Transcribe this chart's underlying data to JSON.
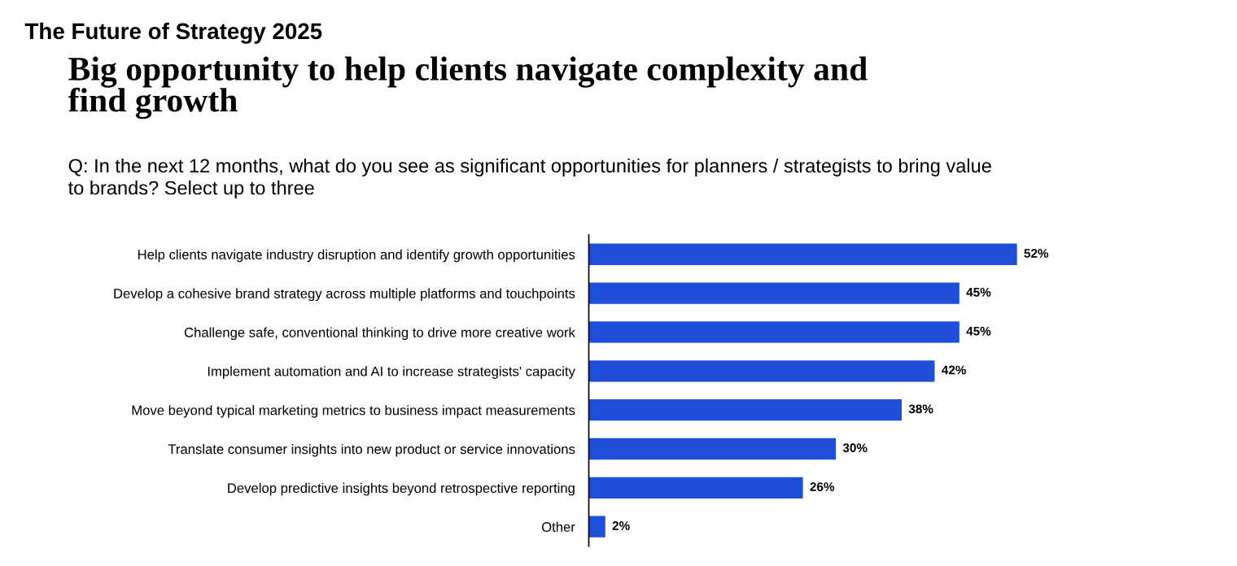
{
  "chart_data": {
    "type": "bar",
    "orientation": "horizontal",
    "annotations": [
      "The Future of Strategy 2025"
    ],
    "title": "Big opportunity to help clients navigate complexity and\nfind growth",
    "subtitle": "Q: In the next 12 months, what do you see as significant opportunities for planners / strategists to bring value\nto brands? Select up to three",
    "categories": [
      "Help clients navigate industry disruption and identify growth opportunities",
      "Develop a cohesive brand strategy across multiple platforms and touchpoints",
      "Challenge safe, conventional thinking to drive more creative work",
      "Implement automation and AI to increase strategists' capacity",
      "Move beyond typical marketing metrics to business impact measurements",
      "Translate consumer insights into new product or service innovations",
      "Develop predictive insights beyond retrospective reporting",
      "Other"
    ],
    "values": [
      52,
      45,
      45,
      42,
      38,
      30,
      26,
      2
    ],
    "value_labels": [
      "52%",
      "45%",
      "45%",
      "42%",
      "38%",
      "30%",
      "26%",
      "2%"
    ],
    "color": "#1f4fd8",
    "grid": false,
    "legend": false
  }
}
